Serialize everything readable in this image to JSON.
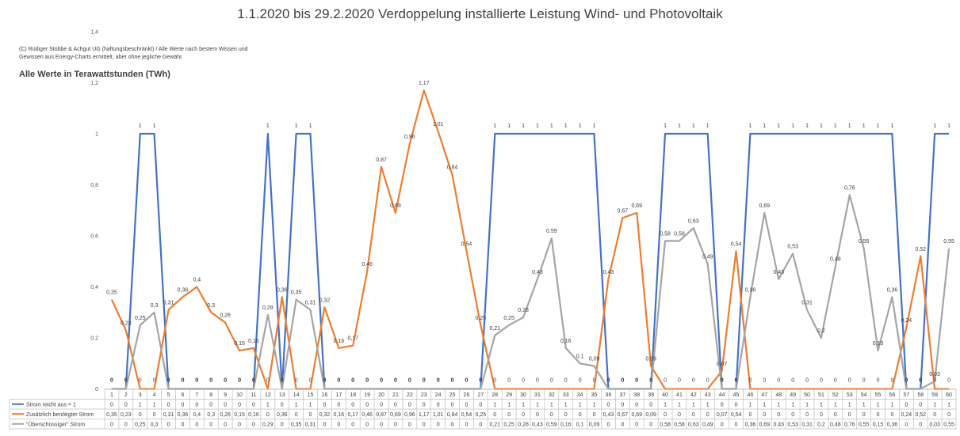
{
  "chart_data": {
    "type": "line",
    "title": "1.1.2020 bis 29.2.2020  Verdoppelung installierte Leistung Wind- und Photovoltaik",
    "copyright": "(C) Rüdiger Stobbe & Achgut UG (haftungsbeschränkt) / Alle Werte nach bestem Wissen und Gewissen aus Energy-Charts ermittelt, aber ohne jegliche Gewähr.",
    "subtitle": "Alle Werte in Terawattstunden (TWh)",
    "y_ticks": [
      "0",
      "0,2",
      "0,4",
      "0,6",
      "0,8",
      "1",
      "1,2",
      "1,4"
    ],
    "ylim": [
      0,
      1.4
    ],
    "categories": [
      "1",
      "2",
      "3",
      "4",
      "5",
      "6",
      "7",
      "8",
      "9",
      "10",
      "11",
      "12",
      "13",
      "14",
      "15",
      "16",
      "17",
      "18",
      "19",
      "20",
      "21",
      "22",
      "23",
      "24",
      "25",
      "26",
      "27",
      "28",
      "29",
      "30",
      "31",
      "32",
      "33",
      "34",
      "35",
      "36",
      "37",
      "38",
      "39",
      "40",
      "41",
      "42",
      "43",
      "44",
      "45",
      "46",
      "47",
      "48",
      "49",
      "50",
      "51",
      "52",
      "53",
      "54",
      "55",
      "56",
      "57",
      "58",
      "59",
      "60"
    ],
    "grid": false,
    "legend_placement": "data table below chart",
    "series": [
      {
        "name": "Strom reicht aus = 1",
        "color": "#4472C4",
        "values": [
          0,
          0,
          1,
          1,
          0,
          0,
          0,
          0,
          0,
          0,
          0,
          1,
          0,
          1,
          1,
          0,
          0,
          0,
          0,
          0,
          0,
          0,
          0,
          0,
          0,
          0,
          0,
          1,
          1,
          1,
          1,
          1,
          1,
          1,
          1,
          0,
          0,
          0,
          0,
          1,
          1,
          1,
          1,
          0,
          0,
          1,
          1,
          1,
          1,
          1,
          1,
          1,
          1,
          1,
          1,
          1,
          0,
          0,
          1,
          1
        ]
      },
      {
        "name": "Zusätzlich benötigter Strom",
        "color": "#ED7D31",
        "values": [
          0.35,
          0.23,
          0,
          0,
          0.31,
          0.36,
          0.4,
          0.3,
          0.26,
          0.15,
          0.16,
          0,
          0.36,
          0,
          0,
          0.32,
          0.16,
          0.17,
          0.46,
          0.87,
          0.69,
          0.96,
          1.17,
          1.01,
          0.84,
          0.54,
          0.25,
          0,
          0,
          0,
          0,
          0,
          0,
          0,
          0,
          0.43,
          0.67,
          0.69,
          0.09,
          0,
          0,
          0,
          0,
          0.07,
          0.54,
          0,
          0,
          0,
          0,
          0,
          0,
          0,
          0,
          0,
          0,
          0,
          0.24,
          0.52,
          0,
          0
        ]
      },
      {
        "name": "\"Überschüssiger\" Strom",
        "color": "#A5A5A5",
        "values": [
          0,
          0,
          0.25,
          0.3,
          0,
          0,
          0,
          0,
          0,
          0,
          0,
          0.29,
          0,
          0.35,
          0.31,
          0,
          0,
          0,
          0,
          0,
          0,
          0,
          0,
          0,
          0,
          0,
          0,
          0.21,
          0.25,
          0.28,
          0.43,
          0.59,
          0.16,
          0.1,
          0.09,
          0,
          0,
          0,
          0,
          0.58,
          0.58,
          0.63,
          0.49,
          0,
          0,
          0.36,
          0.69,
          0.43,
          0.53,
          0.31,
          0.2,
          0.48,
          0.76,
          0.55,
          0.15,
          0.36,
          0,
          0,
          0.03,
          0.55
        ]
      }
    ]
  }
}
